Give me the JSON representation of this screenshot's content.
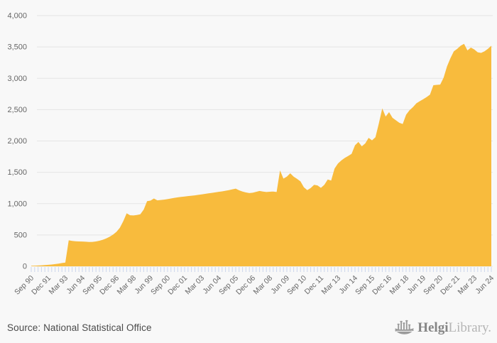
{
  "page": {
    "background": "#f8f8f8"
  },
  "chart_data": {
    "type": "area",
    "title": "",
    "frequency": "quarterly",
    "x_start_label": "Sep 90",
    "x_end_label": "Jun 24",
    "x_tick_every": 5,
    "x_tick_labels": [
      "Sep 90",
      "Dec 91",
      "Mar 93",
      "Jun 94",
      "Sep 95",
      "Dec 96",
      "Mar 98",
      "Jun 99",
      "Sep 00",
      "Dec 01",
      "Mar 03",
      "Jun 04",
      "Sep 05",
      "Dec 06",
      "Mar 08",
      "Jun 09",
      "Sep 10",
      "Dec 11",
      "Mar 13",
      "Jun 14",
      "Sep 15",
      "Dec 16",
      "Mar 18",
      "Jun 19",
      "Sep 20",
      "Dec 21",
      "Mar 23",
      "Jun 24"
    ],
    "ylim": [
      0,
      4000
    ],
    "y_ticks": [
      0,
      500,
      1000,
      1500,
      2000,
      2500,
      3000,
      3500,
      4000
    ],
    "y_tick_labels": [
      "0",
      "500",
      "1,000",
      "1,500",
      "2,000",
      "2,500",
      "3,000",
      "3,500",
      "4,000"
    ],
    "grid": "horizontal",
    "legend": "none",
    "series_color": "#F8BB3D",
    "values": [
      8,
      10,
      13,
      16,
      20,
      24,
      29,
      35,
      43,
      52,
      60,
      415,
      405,
      400,
      397,
      395,
      393,
      388,
      390,
      397,
      408,
      424,
      445,
      472,
      505,
      550,
      615,
      720,
      845,
      815,
      812,
      818,
      830,
      905,
      1040,
      1048,
      1082,
      1052,
      1058,
      1064,
      1072,
      1082,
      1092,
      1100,
      1108,
      1114,
      1120,
      1126,
      1132,
      1140,
      1148,
      1156,
      1164,
      1172,
      1180,
      1188,
      1196,
      1206,
      1216,
      1228,
      1240,
      1212,
      1192,
      1178,
      1168,
      1174,
      1188,
      1202,
      1192,
      1185,
      1190,
      1193,
      1186,
      1530,
      1400,
      1430,
      1485,
      1430,
      1395,
      1355,
      1260,
      1215,
      1250,
      1300,
      1290,
      1252,
      1300,
      1385,
      1368,
      1560,
      1640,
      1690,
      1730,
      1760,
      1795,
      1930,
      1985,
      1915,
      1960,
      2050,
      2010,
      2060,
      2280,
      2520,
      2390,
      2460,
      2370,
      2330,
      2290,
      2270,
      2420,
      2490,
      2540,
      2600,
      2635,
      2665,
      2700,
      2740,
      2890,
      2895,
      2900,
      3010,
      3190,
      3320,
      3430,
      3470,
      3520,
      3550,
      3445,
      3490,
      3460,
      3415,
      3405,
      3430,
      3470,
      3520
    ]
  },
  "colors": {
    "area": "#F8BB3D",
    "gridline": "#e5e5e5",
    "tick": "#ccd6ec",
    "axis_text": "#666666",
    "source_text": "#4a4a4a",
    "logo_dark": "#858585",
    "logo_light": "#b5b5b5"
  },
  "footer": {
    "source": "Source: National Statistical Office"
  },
  "logo": {
    "brand_bold": "Helgi",
    "brand_light": "Library."
  }
}
